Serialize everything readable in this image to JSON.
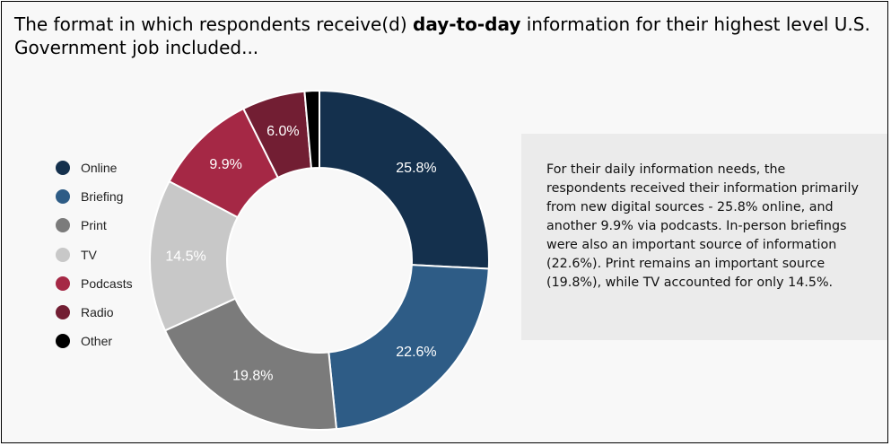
{
  "title": {
    "before": "The format in which respondents receive(d) ",
    "bold": "day-to-day",
    "after": " information for their highest level U.S. Government job included..."
  },
  "chart_data": {
    "type": "pie",
    "donut": true,
    "legend_position": "left",
    "slices": [
      {
        "label": "Online",
        "value": 25.8,
        "display": "25.8%",
        "color": "#14304d",
        "label_color": "#ffffff"
      },
      {
        "label": "Briefing",
        "value": 22.6,
        "display": "22.6%",
        "color": "#2e5c86",
        "label_color": "#ffffff"
      },
      {
        "label": "Print",
        "value": 19.8,
        "display": "19.8%",
        "color": "#7b7b7b",
        "label_color": "#ffffff"
      },
      {
        "label": "TV",
        "value": 14.5,
        "display": "14.5%",
        "color": "#c8c8c8",
        "label_color": "#ffffff"
      },
      {
        "label": "Podcasts",
        "value": 9.9,
        "display": "9.9%",
        "color": "#a52845",
        "label_color": "#ffffff"
      },
      {
        "label": "Radio",
        "value": 6.0,
        "display": "6.0%",
        "color": "#721e33",
        "label_color": "#ffffff"
      },
      {
        "label": "Other",
        "value": 1.4,
        "display": "",
        "color": "#000000",
        "label_color": "#ffffff"
      }
    ]
  },
  "note": {
    "text": "For their daily information needs, the respondents received their information primarily from new digital sources - 25.8% online, and another 9.9% via podcasts. In-person briefings were also an important source of information (22.6%). Print remains an important source (19.8%), while TV accounted for only 14.5%."
  },
  "colors": {
    "frame_background": "#f8f8f8",
    "note_background": "#ebebeb",
    "frame_border": "#000000"
  }
}
